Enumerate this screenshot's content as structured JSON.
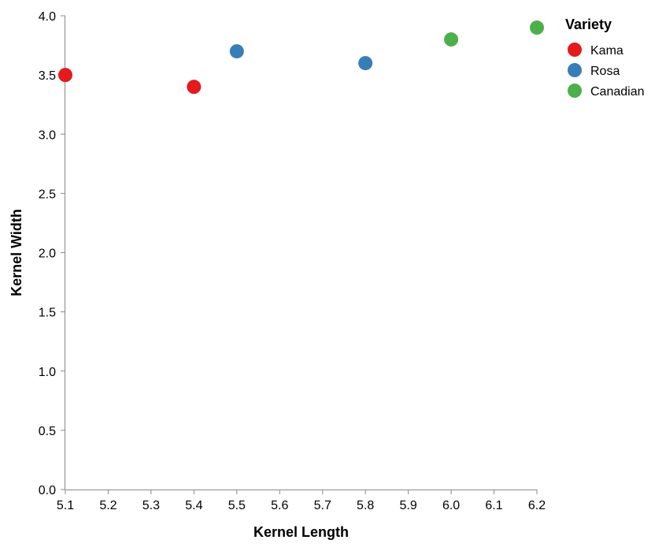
{
  "chart_data": {
    "type": "scatter",
    "title": "",
    "xlabel": "Kernel Length",
    "ylabel": "Kernel Width",
    "xlim": [
      5.1,
      6.2
    ],
    "ylim": [
      0.0,
      4.0
    ],
    "x_ticks": [
      "5.1",
      "5.2",
      "5.3",
      "5.4",
      "5.5",
      "5.6",
      "5.7",
      "5.8",
      "5.9",
      "6.0",
      "6.1",
      "6.2"
    ],
    "y_ticks": [
      "0.0",
      "0.5",
      "1.0",
      "1.5",
      "2.0",
      "2.5",
      "3.0",
      "3.5",
      "4.0"
    ],
    "grid": false,
    "legend": {
      "title": "Variety",
      "placement": "top-right"
    },
    "series": [
      {
        "name": "Kama",
        "color": "#e41a1c",
        "points": [
          {
            "x": 5.1,
            "y": 3.5
          },
          {
            "x": 5.4,
            "y": 3.4
          }
        ]
      },
      {
        "name": "Rosa",
        "color": "#377eb8",
        "points": [
          {
            "x": 5.5,
            "y": 3.7
          },
          {
            "x": 5.8,
            "y": 3.6
          }
        ]
      },
      {
        "name": "Canadian",
        "color": "#4daf4a",
        "points": [
          {
            "x": 6.0,
            "y": 3.8
          },
          {
            "x": 6.2,
            "y": 3.9
          }
        ]
      }
    ]
  }
}
